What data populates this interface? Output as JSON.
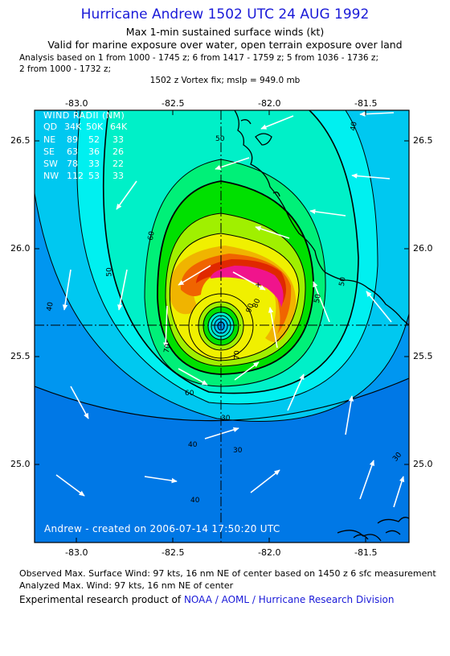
{
  "header": {
    "title": "Hurricane Andrew 1502 UTC 24 AUG 1992",
    "subtitle_1": "Max 1-min sustained surface winds (kt)",
    "subtitle_2": "Valid for marine exposure over water, open terrain exposure over land",
    "analysis_1": "Analysis based on  1 from 1000 - 1745 z;  6 from 1417 - 1759 z;  5 from 1036 - 1736 z;",
    "analysis_2": "2 from 1000 - 1732 z;",
    "vortex": "1502 z Vortex fix; mslp = 949.0 mb"
  },
  "map": {
    "x_ticks": [
      "-83.0",
      "-82.5",
      "-82.0",
      "-81.5"
    ],
    "y_ticks": [
      "26.5",
      "26.0",
      "25.5",
      "25.0"
    ],
    "wind_radii": {
      "title": "WIND RADII (NM)",
      "header": [
        "QD",
        "34K",
        "50K",
        "64K"
      ],
      "rows": [
        [
          "NE",
          "89",
          "52",
          "33"
        ],
        [
          "SE",
          "63",
          "36",
          "26"
        ],
        [
          "SW",
          "78",
          "33",
          "22"
        ],
        [
          "NW",
          "112",
          "53",
          "33"
        ]
      ]
    },
    "contour_labels": [
      "50",
      "40",
      "60",
      "50",
      "40",
      "50",
      "80",
      "90",
      "70",
      "70",
      "60",
      "30",
      "40",
      "30",
      "30",
      "40",
      "50"
    ],
    "credit": "Andrew - created on 2006-07-14 17:50:20 UTC",
    "palette": {
      "ts_light": "#00c8f0",
      "cyan": "#00f0f0",
      "aqua": "#00f0c8",
      "green_light": "#00f078",
      "green": "#00e000",
      "lime": "#a0f000",
      "yellow": "#f0f000",
      "orange_light": "#f0b400",
      "orange": "#f06400",
      "red": "#e02800",
      "magenta": "#f0148c",
      "outer_blue": "#0096f0",
      "deep_blue": "#0078e6"
    }
  },
  "footer": {
    "observed": "Observed Max. Surface Wind: 97 kts, 16 nm NE of center based on 1450 z 6 sfc measurement",
    "analyzed": "Analyzed Max. Wind: 97 kts, 16 nm NE of center",
    "product_prefix": "Experimental research product of",
    "product_org": "NOAA / AOML / Hurricane Research Division"
  }
}
